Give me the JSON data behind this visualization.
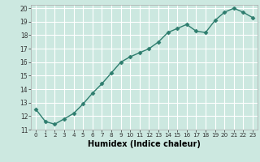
{
  "x": [
    0,
    1,
    2,
    3,
    4,
    5,
    6,
    7,
    8,
    9,
    10,
    11,
    12,
    13,
    14,
    15,
    16,
    17,
    18,
    19,
    20,
    21,
    22,
    23
  ],
  "y": [
    12.5,
    11.6,
    11.4,
    11.8,
    12.2,
    12.9,
    13.7,
    14.4,
    15.2,
    16.0,
    16.4,
    16.7,
    17.0,
    17.5,
    18.2,
    18.5,
    18.8,
    18.3,
    18.2,
    19.1,
    19.7,
    20.0,
    19.7,
    19.3
  ],
  "xlabel": "Humidex (Indice chaleur)",
  "xlim": [
    -0.5,
    23.5
  ],
  "ylim": [
    11,
    20.25
  ],
  "yticks": [
    11,
    12,
    13,
    14,
    15,
    16,
    17,
    18,
    19,
    20
  ],
  "xticks": [
    0,
    1,
    2,
    3,
    4,
    5,
    6,
    7,
    8,
    9,
    10,
    11,
    12,
    13,
    14,
    15,
    16,
    17,
    18,
    19,
    20,
    21,
    22,
    23
  ],
  "line_color": "#2e7d6e",
  "marker_color": "#2e7d6e",
  "bg_color": "#cce8e0",
  "grid_color": "#ffffff",
  "marker": "D",
  "marker_size": 2.5,
  "line_width": 1.0
}
